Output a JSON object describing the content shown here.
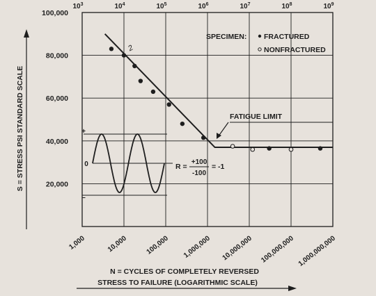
{
  "chart_data": {
    "type": "line",
    "ylabel": "S = STRESS PSI STANDARD SCALE",
    "xlabel_line1": "N = CYCLES OF COMPLETELY REVERSED",
    "xlabel_line2": "STRESS TO FAILURE (LOGARITHMIC SCALE)",
    "x_scale": "log",
    "xlim": [
      1000,
      1000000000
    ],
    "ylim": [
      0,
      100000
    ],
    "grid": true,
    "x_ticks_bottom": [
      "1,000",
      "10,000",
      "100,000",
      "1,000,000",
      "10,000,000",
      "100,000,000",
      "1,000,000,000"
    ],
    "x_ticks_top": [
      {
        "base": "10",
        "exp": "3"
      },
      {
        "base": "10",
        "exp": "4"
      },
      {
        "base": "10",
        "exp": "5"
      },
      {
        "base": "10",
        "exp": "6"
      },
      {
        "base": "10",
        "exp": "7"
      },
      {
        "base": "10",
        "exp": "8"
      },
      {
        "base": "10",
        "exp": "9"
      }
    ],
    "y_ticks": [
      "100,000",
      "80,000",
      "60,000",
      "40,000",
      "20,000"
    ],
    "legend_title": "SPECIMEN:",
    "legend": [
      {
        "symbol": "•",
        "label": "FRACTURED"
      },
      {
        "symbol": "○",
        "label": "NONFRACTURED"
      }
    ],
    "annotations": {
      "fatigue_limit": "FATIGUE LIMIT",
      "curve_mark": "2",
      "r_label": "R =",
      "r_num": "+100",
      "r_den": "-100",
      "r_value": "= -1",
      "wave_plus": "+",
      "wave_zero": "0",
      "wave_minus": "–"
    },
    "sn_curve": [
      {
        "x": 3500,
        "y": 90000
      },
      {
        "x": 1500000,
        "y": 37000
      },
      {
        "x": 1000000000,
        "y": 37000
      }
    ],
    "series": [
      {
        "name": "FRACTURED",
        "points": [
          {
            "x": 5000,
            "y": 83000
          },
          {
            "x": 10000,
            "y": 80000
          },
          {
            "x": 18000,
            "y": 75000
          },
          {
            "x": 25000,
            "y": 68000
          },
          {
            "x": 50000,
            "y": 63000
          },
          {
            "x": 120000,
            "y": 57000
          },
          {
            "x": 250000,
            "y": 48000
          },
          {
            "x": 800000,
            "y": 41500
          },
          {
            "x": 30000000,
            "y": 36500
          },
          {
            "x": 500000000,
            "y": 36500
          }
        ]
      },
      {
        "name": "NONFRACTURED",
        "points": [
          {
            "x": 4000000,
            "y": 37500
          },
          {
            "x": 12000000,
            "y": 36000
          },
          {
            "x": 100000000,
            "y": 36000
          }
        ]
      }
    ]
  }
}
